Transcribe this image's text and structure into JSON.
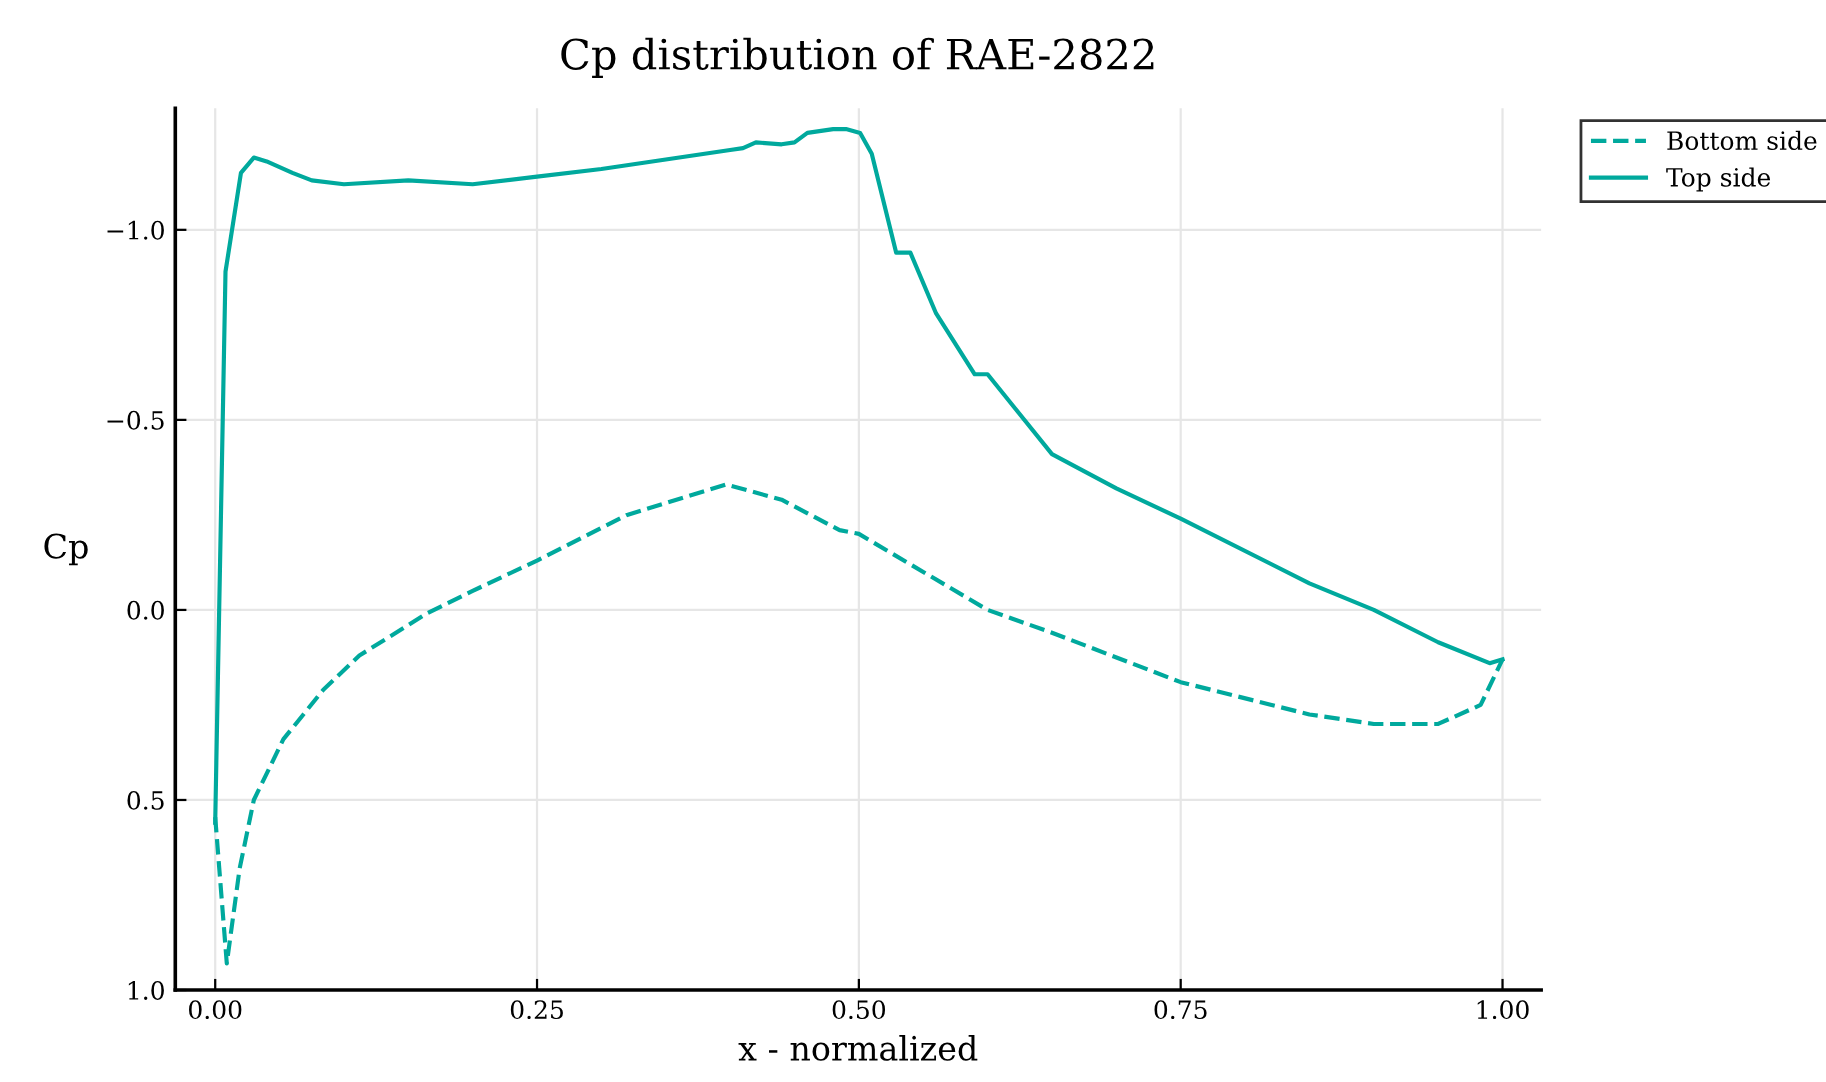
{
  "chart_data": {
    "type": "line",
    "title": "Cp distribution of RAE-2822",
    "xlabel": "x - normalized",
    "ylabel": "Cp",
    "xlim": [
      -0.031,
      1.03
    ],
    "ylim": [
      1.0,
      -1.32
    ],
    "xticks": [
      {
        "value": 0,
        "label": "0.00"
      },
      0.25,
      {
        "value": 0.5,
        "label": "0.50"
      },
      0.75,
      {
        "value": 1,
        "label": "1.00"
      }
    ],
    "yticks": [
      {
        "value": -1,
        "label": "−1.0"
      },
      {
        "value": -0.5,
        "label": "−0.5"
      },
      {
        "value": 0,
        "label": "0.0"
      },
      0.5,
      {
        "value": 1,
        "label": "1.0"
      }
    ],
    "grid": true,
    "legend": "top right",
    "marker": "none",
    "series": [
      {
        "name": "Bottom side",
        "color": "#00a99d",
        "line_style": "dashed",
        "x": [
          0,
          0.009,
          0.019,
          0.03,
          0.053,
          0.084,
          0.112,
          0.164,
          0.2,
          0.25,
          0.32,
          0.397,
          0.44,
          0.485,
          0.5,
          0.54,
          0.6,
          0.65,
          0.75,
          0.85,
          0.9,
          0.95,
          0.983,
          1.0
        ],
        "values": [
          0.545,
          0.93,
          0.68,
          0.5,
          0.34,
          0.21,
          0.12,
          0.01,
          -0.05,
          -0.13,
          -0.25,
          -0.33,
          -0.29,
          -0.21,
          -0.2,
          -0.12,
          0.0,
          0.06,
          0.19,
          0.275,
          0.3,
          0.3,
          0.25,
          0.13
        ]
      },
      {
        "name": "Top side",
        "color": "#00a99d",
        "line_style": "solid",
        "x": [
          0,
          0.008,
          0.02,
          0.03,
          0.04,
          0.06,
          0.075,
          0.1,
          0.15,
          0.2,
          0.25,
          0.3,
          0.35,
          0.4,
          0.41,
          0.42,
          0.44,
          0.45,
          0.46,
          0.48,
          0.49,
          0.501,
          0.51,
          0.529,
          0.54,
          0.56,
          0.59,
          0.6,
          0.65,
          0.7,
          0.75,
          0.85,
          0.9,
          0.95,
          0.99,
          1.0
        ],
        "values": [
          0.56,
          -0.89,
          -1.15,
          -1.19,
          -1.18,
          -1.15,
          -1.13,
          -1.12,
          -1.13,
          -1.12,
          -1.14,
          -1.16,
          -1.185,
          -1.21,
          -1.215,
          -1.23,
          -1.225,
          -1.23,
          -1.255,
          -1.265,
          -1.265,
          -1.255,
          -1.2,
          -0.94,
          -0.94,
          -0.78,
          -0.62,
          -0.62,
          -0.41,
          -0.32,
          -0.24,
          -0.07,
          0.0,
          0.085,
          0.14,
          0.13
        ]
      }
    ]
  }
}
